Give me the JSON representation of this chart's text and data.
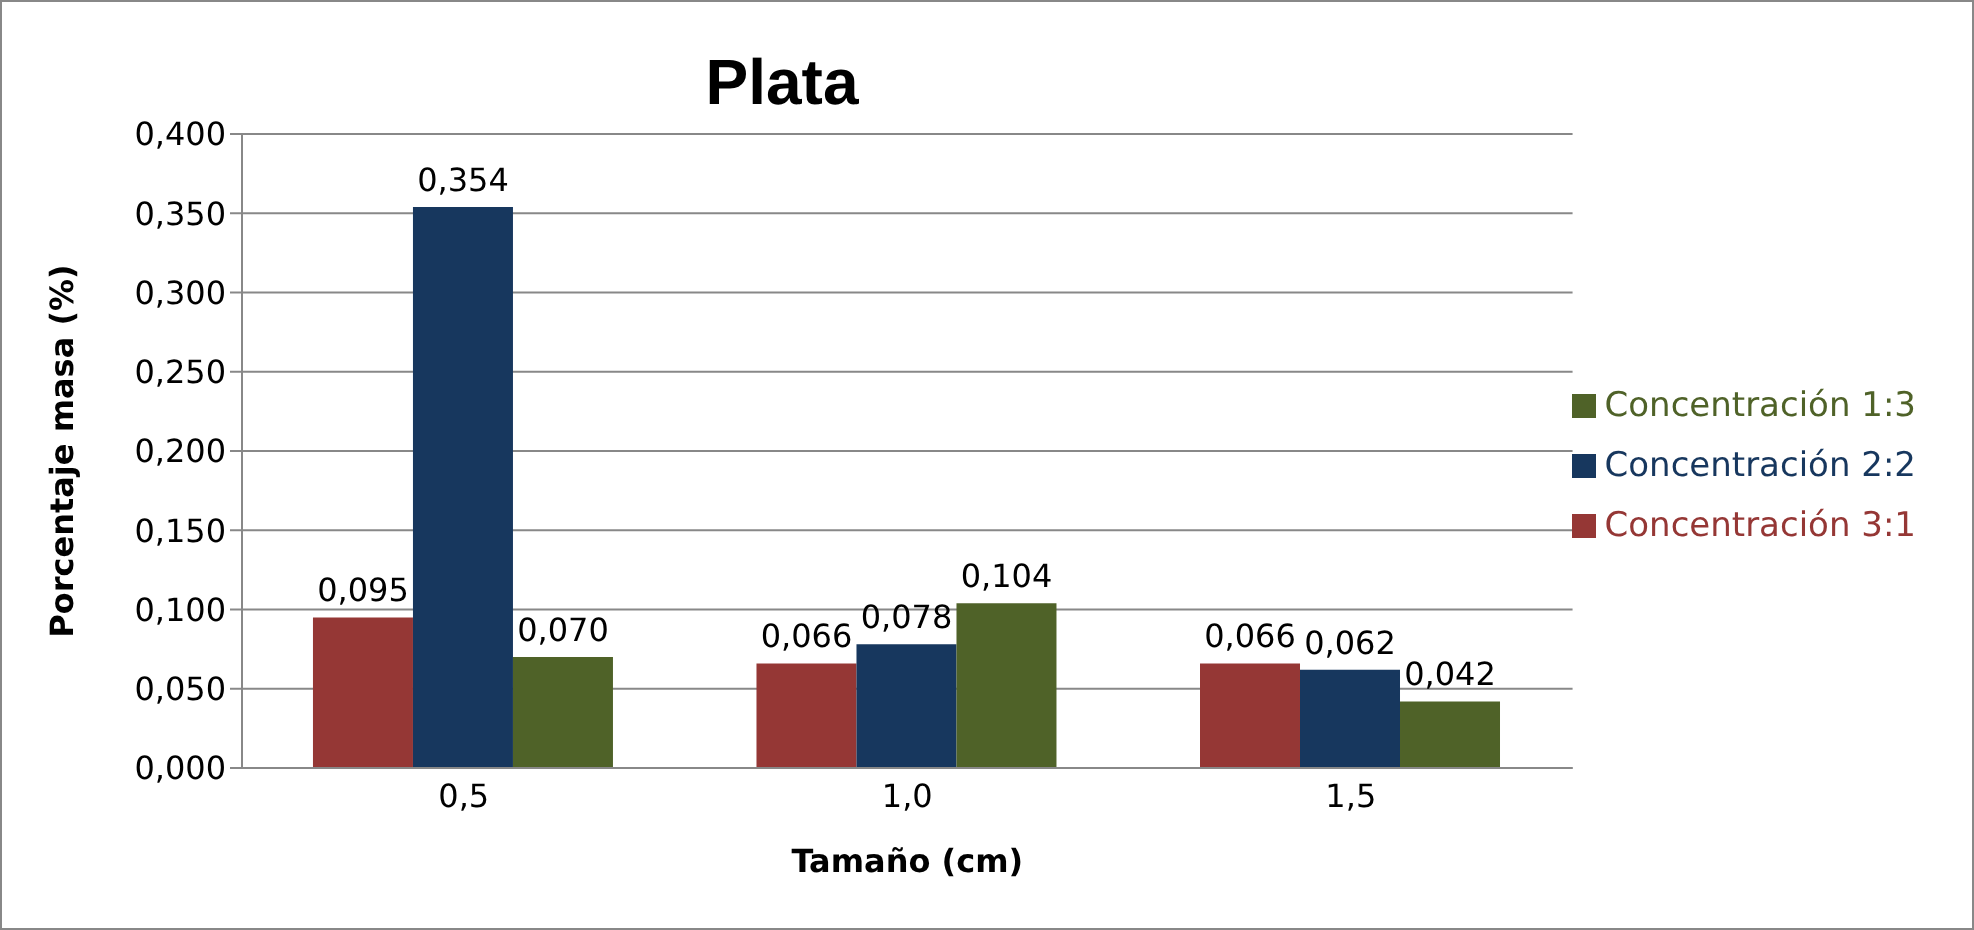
{
  "chart_data": {
    "type": "bar",
    "title": "Plata",
    "xlabel": "Tamaño (cm)",
    "ylabel": "Porcentaje masa (%)",
    "categories": [
      "0,5",
      "1,0",
      "1,5"
    ],
    "series": [
      {
        "name": "Concentración 3:1",
        "color": "#953735",
        "values": [
          0.095,
          0.066,
          0.066
        ],
        "value_labels": [
          "0,095",
          "0,066",
          "0,066"
        ]
      },
      {
        "name": "Concentración 2:2",
        "color": "#17375e",
        "values": [
          0.354,
          0.078,
          0.062
        ],
        "value_labels": [
          "0,354",
          "0,078",
          "0,062"
        ]
      },
      {
        "name": "Concentración 1:3",
        "color": "#4f6228",
        "values": [
          0.07,
          0.104,
          0.042
        ],
        "value_labels": [
          "0,070",
          "0,104",
          "0,042"
        ]
      }
    ],
    "ylim": [
      0,
      0.4
    ],
    "yticks": [
      {
        "value": 0,
        "label": "0,000"
      },
      {
        "value": 0.05,
        "label": "0,050"
      },
      {
        "value": 0.1,
        "label": "0,100"
      },
      {
        "value": 0.15,
        "label": "0,150"
      },
      {
        "value": 0.2,
        "label": "0,200"
      },
      {
        "value": 0.25,
        "label": "0,250"
      },
      {
        "value": 0.3,
        "label": "0,300"
      },
      {
        "value": 0.35,
        "label": "0,350"
      },
      {
        "value": 0.4,
        "label": "0,400"
      }
    ],
    "grid": "y",
    "legend": "right"
  }
}
